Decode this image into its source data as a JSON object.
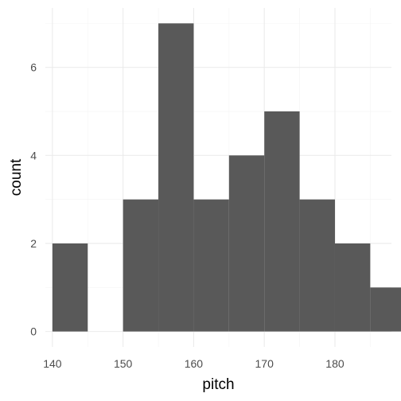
{
  "chart_data": {
    "type": "bar",
    "subtype": "histogram",
    "bins": [
      {
        "x0": 140,
        "x1": 145,
        "count": 2
      },
      {
        "x0": 145,
        "x1": 150,
        "count": 0
      },
      {
        "x0": 150,
        "x1": 155,
        "count": 3
      },
      {
        "x0": 155,
        "x1": 160,
        "count": 7
      },
      {
        "x0": 160,
        "x1": 165,
        "count": 3
      },
      {
        "x0": 165,
        "x1": 170,
        "count": 4
      },
      {
        "x0": 170,
        "x1": 175,
        "count": 5
      },
      {
        "x0": 175,
        "x1": 180,
        "count": 3
      },
      {
        "x0": 180,
        "x1": 185,
        "count": 2
      },
      {
        "x0": 185,
        "x1": 190,
        "count": 1
      }
    ],
    "xlabel": "pitch",
    "ylabel": "count",
    "xlim": [
      139,
      188
    ],
    "ylim": [
      0,
      7
    ],
    "x_ticks": [
      "140",
      "150",
      "160",
      "170",
      "180"
    ],
    "x_tick_values": [
      140,
      150,
      160,
      170,
      180
    ],
    "y_ticks": [
      "0",
      "2",
      "4",
      "6"
    ],
    "y_tick_values": [
      0,
      2,
      4,
      6
    ],
    "grid": true,
    "legend": "none",
    "bar_color": "#595959",
    "grid_color": "#ebebeb"
  }
}
